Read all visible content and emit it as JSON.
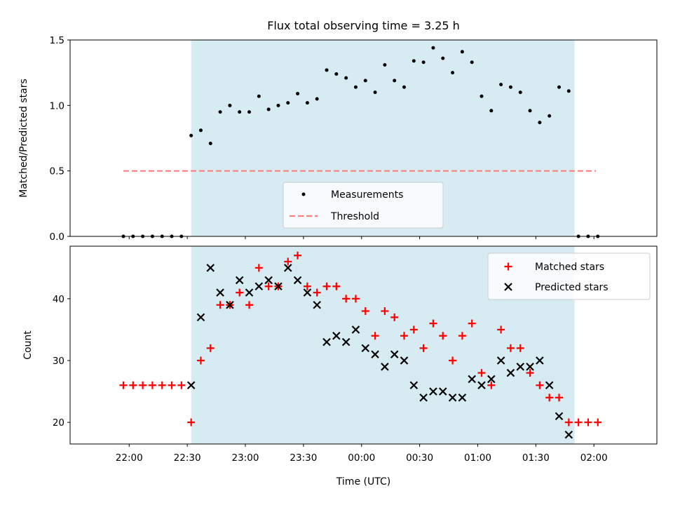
{
  "chart_data": [
    {
      "type": "scatter",
      "title": "Flux total observing time = 3.25 h",
      "ylabel": "Matched/Predicted stars",
      "ylim": [
        0,
        1.5
      ],
      "yticks": [
        "0.0",
        "0.5",
        "1.0",
        "1.5"
      ],
      "shaded_region": {
        "start": "22:32",
        "end": "01:50"
      },
      "legend": {
        "placement": "lower center",
        "entries": [
          "Measurements",
          "Threshold"
        ]
      },
      "threshold": {
        "name": "Threshold",
        "y": 0.5,
        "x_start": "21:57",
        "x_end": "02:01",
        "color": "#ff7f7f"
      },
      "series": [
        {
          "name": "Measurements",
          "color": "#000000",
          "points": [
            [
              "21:57",
              0
            ],
            [
              "22:02",
              0
            ],
            [
              "22:07",
              0
            ],
            [
              "22:12",
              0
            ],
            [
              "22:17",
              0
            ],
            [
              "22:22",
              0
            ],
            [
              "22:27",
              0
            ],
            [
              "22:32",
              0.77
            ],
            [
              "22:37",
              0.81
            ],
            [
              "22:42",
              0.71
            ],
            [
              "22:47",
              0.95
            ],
            [
              "22:52",
              1.0
            ],
            [
              "22:57",
              0.95
            ],
            [
              "23:02",
              0.95
            ],
            [
              "23:07",
              1.07
            ],
            [
              "23:12",
              0.97
            ],
            [
              "23:17",
              1.0
            ],
            [
              "23:22",
              1.02
            ],
            [
              "23:27",
              1.09
            ],
            [
              "23:32",
              1.02
            ],
            [
              "23:37",
              1.05
            ],
            [
              "23:42",
              1.27
            ],
            [
              "23:47",
              1.24
            ],
            [
              "23:52",
              1.21
            ],
            [
              "23:57",
              1.14
            ],
            [
              "00:02",
              1.19
            ],
            [
              "00:07",
              1.1
            ],
            [
              "00:12",
              1.31
            ],
            [
              "00:17",
              1.19
            ],
            [
              "00:22",
              1.14
            ],
            [
              "00:27",
              1.34
            ],
            [
              "00:32",
              1.33
            ],
            [
              "00:37",
              1.44
            ],
            [
              "00:42",
              1.36
            ],
            [
              "00:47",
              1.25
            ],
            [
              "00:52",
              1.41
            ],
            [
              "00:57",
              1.33
            ],
            [
              "01:02",
              1.07
            ],
            [
              "01:07",
              0.96
            ],
            [
              "01:12",
              1.16
            ],
            [
              "01:17",
              1.14
            ],
            [
              "01:22",
              1.1
            ],
            [
              "01:27",
              0.96
            ],
            [
              "01:32",
              0.87
            ],
            [
              "01:37",
              0.92
            ],
            [
              "01:42",
              1.14
            ],
            [
              "01:47",
              1.11
            ],
            [
              "01:52",
              0
            ],
            [
              "01:57",
              0
            ],
            [
              "02:02",
              0
            ]
          ]
        }
      ]
    },
    {
      "type": "scatter",
      "xlabel": "Time (UTC)",
      "ylabel": "Count",
      "ylim": [
        16.5,
        48.5
      ],
      "yticks": [
        "20",
        "30",
        "40"
      ],
      "xticks": [
        "22:00",
        "22:30",
        "23:00",
        "23:30",
        "00:00",
        "00:30",
        "01:00",
        "01:30",
        "02:00"
      ],
      "shaded_region": {
        "start": "22:32",
        "end": "01:50"
      },
      "legend": {
        "placement": "top-right",
        "entries": [
          "Matched stars",
          "Predicted stars"
        ]
      },
      "series": [
        {
          "name": "Matched stars",
          "color": "#ff0000",
          "marker": "plus",
          "points": [
            [
              "21:57",
              26
            ],
            [
              "22:02",
              26
            ],
            [
              "22:07",
              26
            ],
            [
              "22:12",
              26
            ],
            [
              "22:17",
              26
            ],
            [
              "22:22",
              26
            ],
            [
              "22:27",
              26
            ],
            [
              "22:32",
              20
            ],
            [
              "22:37",
              30
            ],
            [
              "22:42",
              32
            ],
            [
              "22:47",
              39
            ],
            [
              "22:52",
              39
            ],
            [
              "22:57",
              41
            ],
            [
              "23:02",
              39
            ],
            [
              "23:07",
              45
            ],
            [
              "23:12",
              42
            ],
            [
              "23:17",
              42
            ],
            [
              "23:22",
              46
            ],
            [
              "23:27",
              47
            ],
            [
              "23:32",
              42
            ],
            [
              "23:37",
              41
            ],
            [
              "23:42",
              42
            ],
            [
              "23:47",
              42
            ],
            [
              "23:52",
              40
            ],
            [
              "23:57",
              40
            ],
            [
              "00:02",
              38
            ],
            [
              "00:07",
              34
            ],
            [
              "00:12",
              38
            ],
            [
              "00:17",
              37
            ],
            [
              "00:22",
              34
            ],
            [
              "00:27",
              35
            ],
            [
              "00:32",
              32
            ],
            [
              "00:37",
              36
            ],
            [
              "00:42",
              34
            ],
            [
              "00:47",
              30
            ],
            [
              "00:52",
              34
            ],
            [
              "00:57",
              36
            ],
            [
              "01:02",
              28
            ],
            [
              "01:07",
              26
            ],
            [
              "01:12",
              35
            ],
            [
              "01:17",
              32
            ],
            [
              "01:22",
              32
            ],
            [
              "01:27",
              28
            ],
            [
              "01:32",
              26
            ],
            [
              "01:37",
              24
            ],
            [
              "01:42",
              24
            ],
            [
              "01:47",
              20
            ],
            [
              "01:52",
              20
            ],
            [
              "01:57",
              20
            ],
            [
              "02:02",
              20
            ]
          ]
        },
        {
          "name": "Predicted stars",
          "color": "#000000",
          "marker": "x",
          "points": [
            [
              "22:32",
              26
            ],
            [
              "22:37",
              37
            ],
            [
              "22:42",
              45
            ],
            [
              "22:47",
              41
            ],
            [
              "22:52",
              39
            ],
            [
              "22:57",
              43
            ],
            [
              "23:02",
              41
            ],
            [
              "23:07",
              42
            ],
            [
              "23:12",
              43
            ],
            [
              "23:17",
              42
            ],
            [
              "23:22",
              45
            ],
            [
              "23:27",
              43
            ],
            [
              "23:32",
              41
            ],
            [
              "23:37",
              39
            ],
            [
              "23:42",
              33
            ],
            [
              "23:47",
              34
            ],
            [
              "23:52",
              33
            ],
            [
              "23:57",
              35
            ],
            [
              "00:02",
              32
            ],
            [
              "00:07",
              31
            ],
            [
              "00:12",
              29
            ],
            [
              "00:17",
              31
            ],
            [
              "00:22",
              30
            ],
            [
              "00:27",
              26
            ],
            [
              "00:32",
              24
            ],
            [
              "00:37",
              25
            ],
            [
              "00:42",
              25
            ],
            [
              "00:47",
              24
            ],
            [
              "00:52",
              24
            ],
            [
              "00:57",
              27
            ],
            [
              "01:02",
              26
            ],
            [
              "01:07",
              27
            ],
            [
              "01:12",
              30
            ],
            [
              "01:17",
              28
            ],
            [
              "01:22",
              29
            ],
            [
              "01:27",
              29
            ],
            [
              "01:32",
              30
            ],
            [
              "01:37",
              26
            ],
            [
              "01:42",
              21
            ],
            [
              "01:47",
              18
            ]
          ]
        }
      ]
    }
  ]
}
